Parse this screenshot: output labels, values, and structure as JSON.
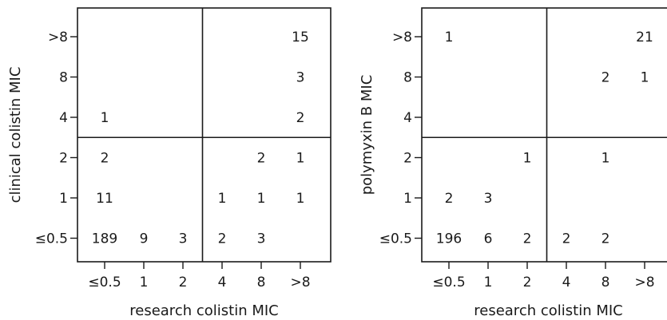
{
  "chart_data": [
    {
      "type": "table",
      "xlabel": "research colistin MIC",
      "ylabel": "clinical colistin MIC",
      "x_categories": [
        "≤0.5",
        "1",
        "2",
        "4",
        "8",
        ">8"
      ],
      "y_categories": [
        ">8",
        "8",
        "4",
        "2",
        "1",
        "≤0.5"
      ],
      "cells": [
        {
          "x": ">8",
          "y": ">8",
          "count": "15"
        },
        {
          "x": ">8",
          "y": "8",
          "count": "3"
        },
        {
          "x": "≤0.5",
          "y": "4",
          "count": "1"
        },
        {
          "x": ">8",
          "y": "4",
          "count": "2"
        },
        {
          "x": "≤0.5",
          "y": "2",
          "count": "2"
        },
        {
          "x": "8",
          "y": "2",
          "count": "2"
        },
        {
          "x": ">8",
          "y": "2",
          "count": "1"
        },
        {
          "x": "≤0.5",
          "y": "1",
          "count": "11"
        },
        {
          "x": "4",
          "y": "1",
          "count": "1"
        },
        {
          "x": "8",
          "y": "1",
          "count": "1"
        },
        {
          "x": ">8",
          "y": "1",
          "count": "1"
        },
        {
          "x": "≤0.5",
          "y": "≤0.5",
          "count": "189"
        },
        {
          "x": "1",
          "y": "≤0.5",
          "count": "9"
        },
        {
          "x": "2",
          "y": "≤0.5",
          "count": "3"
        },
        {
          "x": "4",
          "y": "≤0.5",
          "count": "2"
        },
        {
          "x": "8",
          "y": "≤0.5",
          "count": "3"
        }
      ],
      "breakpoint": {
        "x_between": [
          "2",
          "4"
        ],
        "y_between": [
          "4",
          "2"
        ]
      },
      "grid": false
    },
    {
      "type": "table",
      "xlabel": "research colistin MIC",
      "ylabel": "polymyxin B MIC",
      "x_categories": [
        "≤0.5",
        "1",
        "2",
        "4",
        "8",
        ">8"
      ],
      "y_categories": [
        ">8",
        "8",
        "4",
        "2",
        "1",
        "≤0.5"
      ],
      "cells": [
        {
          "x": "≤0.5",
          "y": ">8",
          "count": "1"
        },
        {
          "x": ">8",
          "y": ">8",
          "count": "21"
        },
        {
          "x": "8",
          "y": "8",
          "count": "2"
        },
        {
          "x": ">8",
          "y": "8",
          "count": "1"
        },
        {
          "x": "2",
          "y": "2",
          "count": "1"
        },
        {
          "x": "8",
          "y": "2",
          "count": "1"
        },
        {
          "x": "≤0.5",
          "y": "1",
          "count": "2"
        },
        {
          "x": "1",
          "y": "1",
          "count": "3"
        },
        {
          "x": "≤0.5",
          "y": "≤0.5",
          "count": "196"
        },
        {
          "x": "1",
          "y": "≤0.5",
          "count": "6"
        },
        {
          "x": "2",
          "y": "≤0.5",
          "count": "2"
        },
        {
          "x": "4",
          "y": "≤0.5",
          "count": "2"
        },
        {
          "x": "8",
          "y": "≤0.5",
          "count": "2"
        }
      ],
      "breakpoint": {
        "x_between": [
          "2",
          "4"
        ],
        "y_between": [
          "4",
          "2"
        ]
      },
      "grid": false
    }
  ]
}
